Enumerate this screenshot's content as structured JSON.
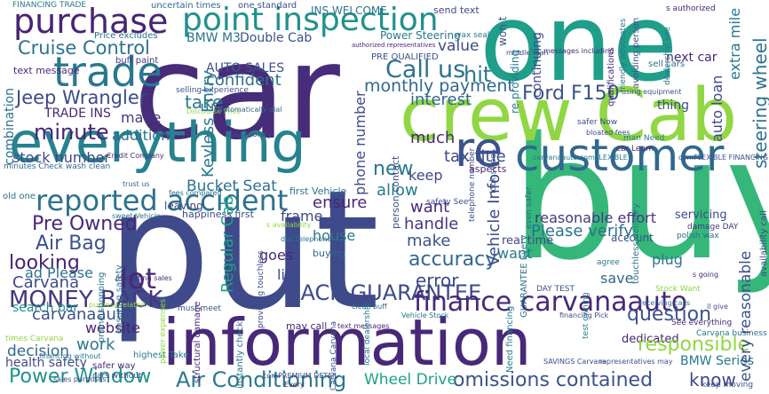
{
  "words": {
    "car": "car",
    "one": "one",
    "buy": "buy",
    "put": "put",
    "information": "information",
    "crew_cab": "crew Cab",
    "everything": "everything",
    "customer": "customer",
    "purchase": "purchase",
    "point_inspection": "point inspection",
    "trade": "trade",
    "re": "re",
    "reported_accident": "reported accident",
    "money_back": "MONEY BACK",
    "back_guarantee": "BACK GUARANTEE",
    "finance_carvanaauto": "finance carvanaauto",
    "power_window": "Power Window",
    "air_conditioning": "Air Conditioning",
    "omissions_contained": "omissions contained",
    "wheel_drive": "Wheel Drive",
    "cruise_control": "Cruise Control",
    "jeep_wrangler": "Jeep Wrangler",
    "trade_ins": "TRADE INS",
    "minute": "minute",
    "call_us": "Call us",
    "monthly_payment": "monthly payment",
    "ford_f150": "Ford F150",
    "interest": "interest",
    "tax_title": "tax title",
    "much": "much",
    "keep": "keep",
    "allow": "allow",
    "new": "new",
    "want1": "want",
    "want2": "want",
    "make": "make",
    "accuracy": "accuracy",
    "error": "error",
    "handle": "handle",
    "bad_credit": "Bad Credit",
    "ensure": "ensure",
    "first_vehicle": "first Vehicle",
    "frame": "frame",
    "house": "house",
    "goes": "goes",
    "buying": "buying",
    "list": "list",
    "may_call": "may call",
    "bucket_seat": "Bucket Seat",
    "leaving": "leaving",
    "pre_owned": "Pre Owned",
    "air_bag": "Air Bag",
    "looking": "looking",
    "ad_please": "ad Please",
    "search_bar": "search bar",
    "carvana": "Carvana",
    "lot": "lot",
    "carvanaauto": "carvanaauto",
    "website": "website",
    "work": "work",
    "decision": "decision",
    "health_safety": "health safety",
    "take": "take",
    "made": "made",
    "addition": "addition",
    "stock_number": "stock number",
    "confident": "confident",
    "auto_sales": "AUTO SALES",
    "bmw_m3": "BMW M3",
    "double_cab": "Double Cab",
    "value": "value",
    "power_steering": "Power Steering",
    "ins_welcome": "INS WELCOME",
    "reasonable_effort": "reasonable effort",
    "servicing": "servicing",
    "please_verify": "Please verify",
    "save": "save",
    "plug": "plug",
    "account": "account",
    "dedicated": "dedicated",
    "bmw_series": "BMW Series",
    "know": "know",
    "responsible": "responsible",
    "question": "question",
    "every_reasonable": "every reasonable",
    "steering_wheel": "steering wheel",
    "extra_mile": "extra mile",
    "auto_loan": "auto loan",
    "next_car": "next car",
    "thing": "thing",
    "hit": "hit",
    "real_time": "real time",
    "keyless_entry": "Keyless Entry",
    "phone_number": "phone number",
    "regular_cab": "Regular Cab",
    "vehicle_info": "Vehicle Info",
    "combination": "combination",
    "text_message": "text message",
    "financing_trade": "FINANCING TRADE",
    "uncertain_times": "uncertain times",
    "one_standard": "one standard",
    "send_text": "send text",
    "price_excludes": "Price excludes",
    "buff_paint": "buff paint",
    "wax_seal": "wax seal",
    "pre_qualified": "PRE QUALIFIED",
    "sell_cars": "sell cars",
    "continuing": "continuing",
    "re_providing": "re providing",
    "wont": "won t",
    "aspects": "aspects",
    "person_contact": "person contact",
    "old_one": "old one",
    "minutes_check": "minutes Check wash clean",
    "selling_experience": "selling experience",
    "discourse_price": "Discourse Price",
    "structural_damage": "structural damage",
    "safer_way": "safer way",
    "cars_without": "cars without",
    "highest_take": "highest Take",
    "see_everything": "See everything",
    "keep_moving": "keep moving",
    "stock_want": "Stock Want",
    "every": "Every",
    "day_test": "DAY TEST",
    "financing_pick": "financing Pick",
    "agree": "agree",
    "polish_wax": "polish wax",
    "safer_now": "safer Now",
    "day_money": "day money",
    "times_carvana": "times Carvana",
    "carvana_business": "Carvana business",
    "comflexible_financing": "comFLEXIBLE FINANCING",
    "carvanaauto_comflexible": "carvanaauto comFLEXIBLE",
    "damage_day": "damage DAY",
    "s_authorized": "s authorized",
    "safety_see": "safety See",
    "even_safer": "even safer",
    "ll_give": "ll give",
    "online_shopping": "online shopping",
    "ensuring_safety": "ensuring safety",
    "man_need": "man Need",
    "car_learn": "car Learn",
    "trust_us": "trust us",
    "fees_compared": "fees compared",
    "vehicle_stock": "Vehicle Stock",
    "look_sweet": "look sweet",
    "telephone_number": "telephone number",
    "financing_without": "financing without",
    "comprehensive_inspection": "comPREMIUM DETAIL",
    "marketing_sales": "marketing sales",
    "happiness_first": "happiness first",
    "must_meet": "must meet",
    "clean_buff": "clean buff",
    "caro_carvana": "Carvana Carvana",
    "sweet_vehicle": "sweet Vehicle",
    "need_financing": "Need financing",
    "guarantee_every": "GUARANTEE Every",
    "toucheless_delivery": "touchless delivery",
    "availability_call": "availability call",
    "automatically_dial": "automatically dial",
    "authorized_representatives": "authorized representatives",
    "representatives_may": "representatives may",
    "messages_including": "messages including",
    "dealership_see": "dealership see",
    "avoiding_person": "avoiding person",
    "friendly_advocates": "friendly advocates",
    "qualifications": "qualifications",
    "using_equipment": "using equipment",
    "middle_man": "middle man",
    "bloated_fees": "bloated fees",
    "s_going": "s going",
    "s_availability": "s availability",
    "instantly_check": "instantly check",
    "power_expenses": "power expenses",
    "test_owning": "test owning",
    "credit_company": "Credit Company",
    "local_dealership": "local dealership",
    "receiving_calls": "receiving calls",
    "sales_purposes": "sales purposes",
    "savings_carvana": "SAVINGS Carvana",
    "providing_touchless": "providing touchless",
    "purpose_related": "purpose related",
    "dial_telephone": "dial telephone",
    "text_messages": "text messages"
  }
}
